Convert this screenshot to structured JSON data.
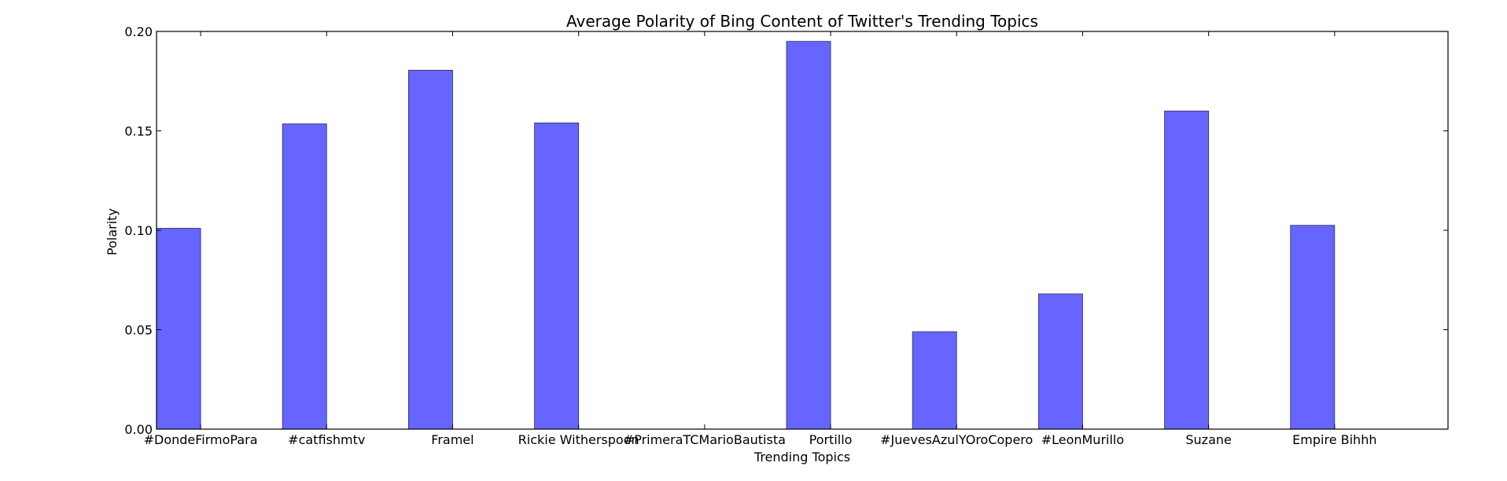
{
  "chart_data": {
    "type": "bar",
    "title": "Average Polarity of Bing Content of Twitter's Trending Topics",
    "xlabel": "Trending Topics",
    "ylabel": "Polarity",
    "ylim": [
      0,
      0.2
    ],
    "yticks": [
      "0.00",
      "0.05",
      "0.10",
      "0.15",
      "0.20"
    ],
    "ytick_values": [
      0,
      0.05,
      0.1,
      0.15,
      0.2
    ],
    "categories": [
      "#DondeFirmoPara",
      "#catfishmtv",
      "Framel",
      "Rickie Witherspoon",
      "#PrimeraTCMarioBautista",
      "Portillo",
      "#JuevesAzulYOroCopero",
      "#LeonMurillo",
      "Suzane",
      "Empire Bihhh"
    ],
    "values": [
      0.101,
      0.1535,
      0.1805,
      0.154,
      0.0,
      0.195,
      0.049,
      0.068,
      0.16,
      0.1025
    ],
    "bar_color": "#6666ff",
    "grid": false,
    "legend": "none"
  }
}
